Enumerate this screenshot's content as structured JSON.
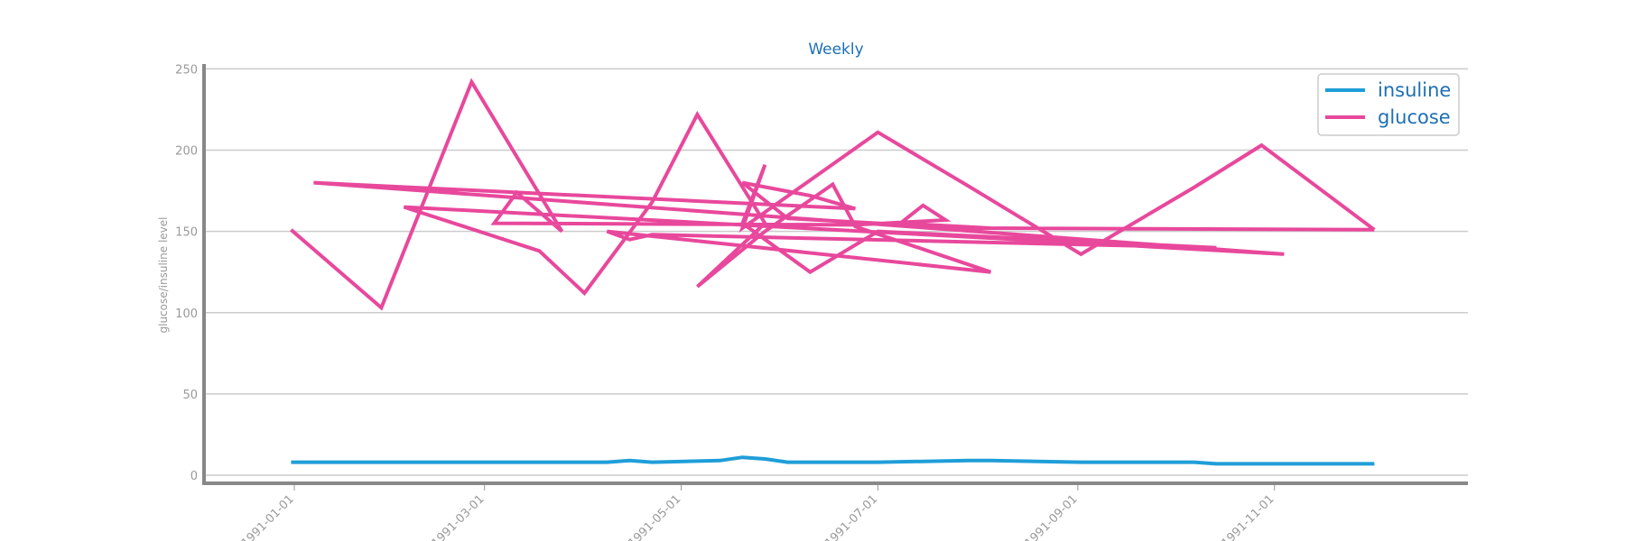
{
  "chart_data": {
    "type": "line",
    "title": "Weekly",
    "xlabel": "",
    "ylabel": "glucose/insuline level",
    "ylim": [
      -5,
      253
    ],
    "xlim": [
      "1990-12-04",
      "1991-12-31"
    ],
    "y_ticks": [
      0,
      50,
      100,
      150,
      200,
      250
    ],
    "x_ticks": [
      "1991-01-01",
      "1991-03-01",
      "1991-05-01",
      "1991-07-01",
      "1991-09-01",
      "1991-11-01"
    ],
    "grid": "horizontal",
    "legend_position": "top-right",
    "series": [
      {
        "name": "insuline",
        "color": "#1f9ed8",
        "points": [
          [
            "1990-12-31",
            8
          ],
          [
            "1991-01-07",
            8
          ],
          [
            "1991-02-04",
            8
          ],
          [
            "1991-02-25",
            8
          ],
          [
            "1991-03-25",
            8
          ],
          [
            "1991-04-08",
            8
          ],
          [
            "1991-04-15",
            9
          ],
          [
            "1991-04-22",
            8
          ],
          [
            "1991-05-13",
            9
          ],
          [
            "1991-05-20",
            11
          ],
          [
            "1991-05-27",
            10
          ],
          [
            "1991-06-03",
            8
          ],
          [
            "1991-07-01",
            8
          ],
          [
            "1991-07-29",
            9
          ],
          [
            "1991-08-05",
            9
          ],
          [
            "1991-09-02",
            8
          ],
          [
            "1991-10-07",
            8
          ],
          [
            "1991-10-14",
            7
          ],
          [
            "1991-11-04",
            7
          ],
          [
            "1991-12-02",
            7
          ]
        ]
      },
      {
        "name": "glucose",
        "color": "#e8489c",
        "points": [
          [
            "1990-12-31",
            151
          ],
          [
            "1991-01-28",
            103
          ],
          [
            "1991-02-25",
            242
          ],
          [
            "1991-03-25",
            150
          ],
          [
            "1991-03-11",
            174
          ],
          [
            "1991-03-04",
            155
          ],
          [
            "1991-06-24",
            154
          ],
          [
            "1991-07-22",
            157
          ],
          [
            "1991-07-15",
            166
          ],
          [
            "1991-07-08",
            155
          ],
          [
            "1991-08-05",
            152
          ],
          [
            "1991-12-02",
            151
          ],
          [
            "1991-07-29",
            152
          ],
          [
            "1991-06-03",
            158
          ],
          [
            "1991-05-20",
            180
          ],
          [
            "1991-06-10",
            172
          ],
          [
            "1991-06-24",
            164
          ],
          [
            "1991-01-07",
            180
          ],
          [
            "1991-11-04",
            136
          ],
          [
            "1991-09-02",
            143
          ],
          [
            "1991-02-04",
            165
          ],
          [
            "1991-03-18",
            138
          ],
          [
            "1991-04-01",
            112
          ],
          [
            "1991-04-22",
            168
          ],
          [
            "1991-05-06",
            222
          ],
          [
            "1991-05-27",
            155
          ],
          [
            "1991-05-06",
            116
          ],
          [
            "1991-05-27",
            150
          ],
          [
            "1991-06-17",
            179
          ],
          [
            "1991-06-24",
            153
          ],
          [
            "1991-08-05",
            125
          ],
          [
            "1991-04-08",
            150
          ],
          [
            "1991-04-15",
            145
          ],
          [
            "1991-04-22",
            148
          ],
          [
            "1991-10-14",
            140
          ],
          [
            "1991-07-01",
            150
          ],
          [
            "1991-06-10",
            125
          ],
          [
            "1991-05-20",
            155
          ],
          [
            "1991-05-27",
            191
          ],
          [
            "1991-05-20",
            152
          ],
          [
            "1991-07-01",
            211
          ],
          [
            "1991-07-29",
            178
          ],
          [
            "1991-09-02",
            136
          ],
          [
            "1991-10-07",
            177
          ],
          [
            "1991-10-28",
            203
          ],
          [
            "1991-12-02",
            151
          ]
        ]
      }
    ]
  }
}
